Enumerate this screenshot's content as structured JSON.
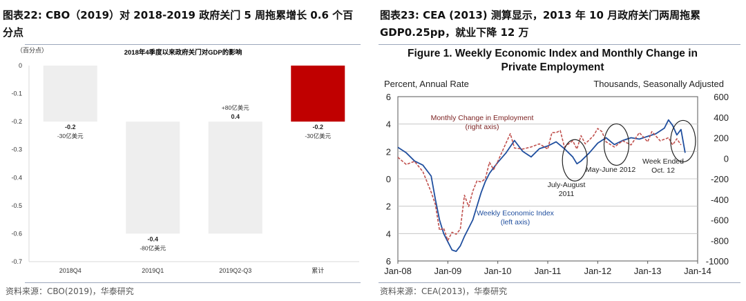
{
  "left": {
    "caption_line1": "图表22:  CBO（2019）对 2018-2019 政府关门 5 周拖累增长 0.6 个百",
    "caption_line2": "分点",
    "source": "资料来源：CBO(2019)，华泰研究",
    "chart_data": {
      "type": "bar",
      "subtype": "waterfall",
      "title": "2018年4季度以来政府关门对GDP的影响",
      "ylabel": "（百分点）",
      "ylim": [
        -0.7,
        0
      ],
      "yticks": [
        0,
        -0.1,
        -0.2,
        -0.3,
        -0.4,
        -0.5,
        -0.6,
        -0.7
      ],
      "ytick_labels": [
        "0",
        "-0.1",
        "-0.2",
        "-0.3",
        "-0.4",
        "-0.5",
        "-0.6",
        "-0.7"
      ],
      "categories": [
        "2018Q4",
        "2019Q1",
        "2019Q2-Q3",
        "累计"
      ],
      "values": [
        -0.2,
        -0.4,
        0.4,
        -0.2
      ],
      "value_labels": [
        "-0.2",
        "-0.4",
        "0.4",
        "-0.2"
      ],
      "amount_labels": [
        "-30亿美元",
        "-80亿美元",
        "+80亿美元",
        "-30亿美元"
      ],
      "bar_ranges": [
        [
          -0.2,
          0
        ],
        [
          -0.6,
          -0.2
        ],
        [
          -0.6,
          -0.2
        ],
        [
          -0.2,
          0
        ]
      ],
      "colors": {
        "bar": "#eeeeee",
        "total": "#c00000",
        "axis": "#d9d9d9",
        "labels": "#222222"
      }
    }
  },
  "right": {
    "caption_line1": "图表23:  CEA (2013) 测算显示，2013 年 10 月政府关门两周拖累",
    "caption_line2": "GDP0.25pp，就业下降 12 万",
    "source": "资料来源：CEA(2013)，华泰研究",
    "chart_data": {
      "type": "line",
      "title_line1": "Figure 1. Weekly Economic Index and Monthly Change in",
      "title_line2": "Private Employment",
      "ylabel_left": "Percent, Annual Rate",
      "ylabel_right": "Thousands, Seasonally Adjusted",
      "left_yticks": [
        "6",
        "4",
        "2",
        "0",
        "2",
        "4",
        "6"
      ],
      "left_ylim": [
        -6,
        6
      ],
      "right_yticks": [
        "600",
        "400",
        "200",
        "0",
        "-200",
        "-400",
        "-600",
        "-800",
        "-1000"
      ],
      "right_ylim": [
        -1000,
        600
      ],
      "x_ticks": [
        "Jan-08",
        "Jan-09",
        "Jan-10",
        "Jan-11",
        "Jan-12",
        "Jan-13",
        "Jan-14"
      ],
      "x_range": [
        "2008-01",
        "2014-01"
      ],
      "grid": true,
      "series": [
        {
          "name": "Weekly Economic Index",
          "axis": "left",
          "style": "solid",
          "color": "#1f4e9e",
          "points": [
            [
              "2008-01",
              2.3
            ],
            [
              "2008-03",
              1.9
            ],
            [
              "2008-05",
              1.3
            ],
            [
              "2008-07",
              1.0
            ],
            [
              "2008-09",
              0.2
            ],
            [
              "2008-10",
              -1.5
            ],
            [
              "2008-11",
              -3.0
            ],
            [
              "2008-12",
              -4.0
            ],
            [
              "2009-01",
              -4.6
            ],
            [
              "2009-02",
              -5.2
            ],
            [
              "2009-03",
              -5.3
            ],
            [
              "2009-04",
              -4.9
            ],
            [
              "2009-05",
              -4.2
            ],
            [
              "2009-06",
              -3.6
            ],
            [
              "2009-07",
              -3.0
            ],
            [
              "2009-08",
              -2.0
            ],
            [
              "2009-09",
              -1.0
            ],
            [
              "2009-10",
              -0.2
            ],
            [
              "2009-11",
              0.4
            ],
            [
              "2009-12",
              0.8
            ],
            [
              "2010-01",
              1.2
            ],
            [
              "2010-03",
              1.9
            ],
            [
              "2010-05",
              2.8
            ],
            [
              "2010-07",
              2.0
            ],
            [
              "2010-09",
              1.6
            ],
            [
              "2010-11",
              2.2
            ],
            [
              "2011-01",
              2.4
            ],
            [
              "2011-03",
              2.7
            ],
            [
              "2011-05",
              2.2
            ],
            [
              "2011-07",
              1.6
            ],
            [
              "2011-08",
              1.1
            ],
            [
              "2011-09",
              1.3
            ],
            [
              "2011-11",
              1.9
            ],
            [
              "2012-01",
              2.6
            ],
            [
              "2012-03",
              3.0
            ],
            [
              "2012-05",
              2.5
            ],
            [
              "2012-07",
              2.8
            ],
            [
              "2012-09",
              3.0
            ],
            [
              "2012-11",
              2.9
            ],
            [
              "2013-01",
              3.1
            ],
            [
              "2013-03",
              3.3
            ],
            [
              "2013-05",
              3.7
            ],
            [
              "2013-06",
              4.3
            ],
            [
              "2013-07",
              3.9
            ],
            [
              "2013-08",
              3.2
            ],
            [
              "2013-09",
              3.6
            ],
            [
              "2013-10",
              1.9
            ]
          ]
        },
        {
          "name": "Monthly Change in Employment",
          "axis": "right",
          "style": "dashed",
          "color": "#c0504d",
          "points": [
            [
              "2008-01",
              10
            ],
            [
              "2008-03",
              -60
            ],
            [
              "2008-05",
              -30
            ],
            [
              "2008-07",
              -130
            ],
            [
              "2008-09",
              -330
            ],
            [
              "2008-10",
              -450
            ],
            [
              "2008-11",
              -700
            ],
            [
              "2008-12",
              -680
            ],
            [
              "2009-01",
              -800
            ],
            [
              "2009-02",
              -720
            ],
            [
              "2009-03",
              -740
            ],
            [
              "2009-04",
              -690
            ],
            [
              "2009-05",
              -360
            ],
            [
              "2009-06",
              -470
            ],
            [
              "2009-07",
              -320
            ],
            [
              "2009-08",
              -220
            ],
            [
              "2009-09",
              -230
            ],
            [
              "2009-10",
              -200
            ],
            [
              "2009-11",
              -40
            ],
            [
              "2009-12",
              -110
            ],
            [
              "2010-01",
              -30
            ],
            [
              "2010-03",
              150
            ],
            [
              "2010-04",
              240
            ],
            [
              "2010-05",
              100
            ],
            [
              "2010-07",
              90
            ],
            [
              "2010-09",
              110
            ],
            [
              "2010-11",
              140
            ],
            [
              "2011-01",
              90
            ],
            [
              "2011-02",
              250
            ],
            [
              "2011-03",
              250
            ],
            [
              "2011-04",
              270
            ],
            [
              "2011-05",
              110
            ],
            [
              "2011-07",
              170
            ],
            [
              "2011-08",
              90
            ],
            [
              "2011-09",
              220
            ],
            [
              "2011-10",
              140
            ],
            [
              "2011-12",
              220
            ],
            [
              "2012-01",
              290
            ],
            [
              "2012-02",
              260
            ],
            [
              "2012-03",
              160
            ],
            [
              "2012-05",
              110
            ],
            [
              "2012-07",
              170
            ],
            [
              "2012-09",
              130
            ],
            [
              "2012-11",
              250
            ],
            [
              "2013-01",
              160
            ],
            [
              "2013-02",
              260
            ],
            [
              "2013-04",
              170
            ],
            [
              "2013-06",
              200
            ],
            [
              "2013-07",
              130
            ],
            [
              "2013-08",
              190
            ],
            [
              "2013-09",
              130
            ]
          ]
        }
      ],
      "annotations": [
        {
          "text": "Monthly Change in Employment",
          "text2": "(right axis)",
          "color": "#7a1f1f"
        },
        {
          "text": "Weekly Economic Index",
          "text2": "(left axis)",
          "color": "#1f4e9e"
        },
        {
          "text": "July-August",
          "text2": "2011",
          "color": "#222222"
        },
        {
          "text": "May-June 2012",
          "text2": "",
          "color": "#222222"
        },
        {
          "text": "Week Ended",
          "text2": "Oct. 12",
          "color": "#222222"
        }
      ],
      "circled_periods": [
        [
          "2011-07",
          "2011-08"
        ],
        [
          "2012-05",
          "2012-06"
        ],
        [
          "2013-09",
          "2013-10"
        ]
      ]
    }
  }
}
